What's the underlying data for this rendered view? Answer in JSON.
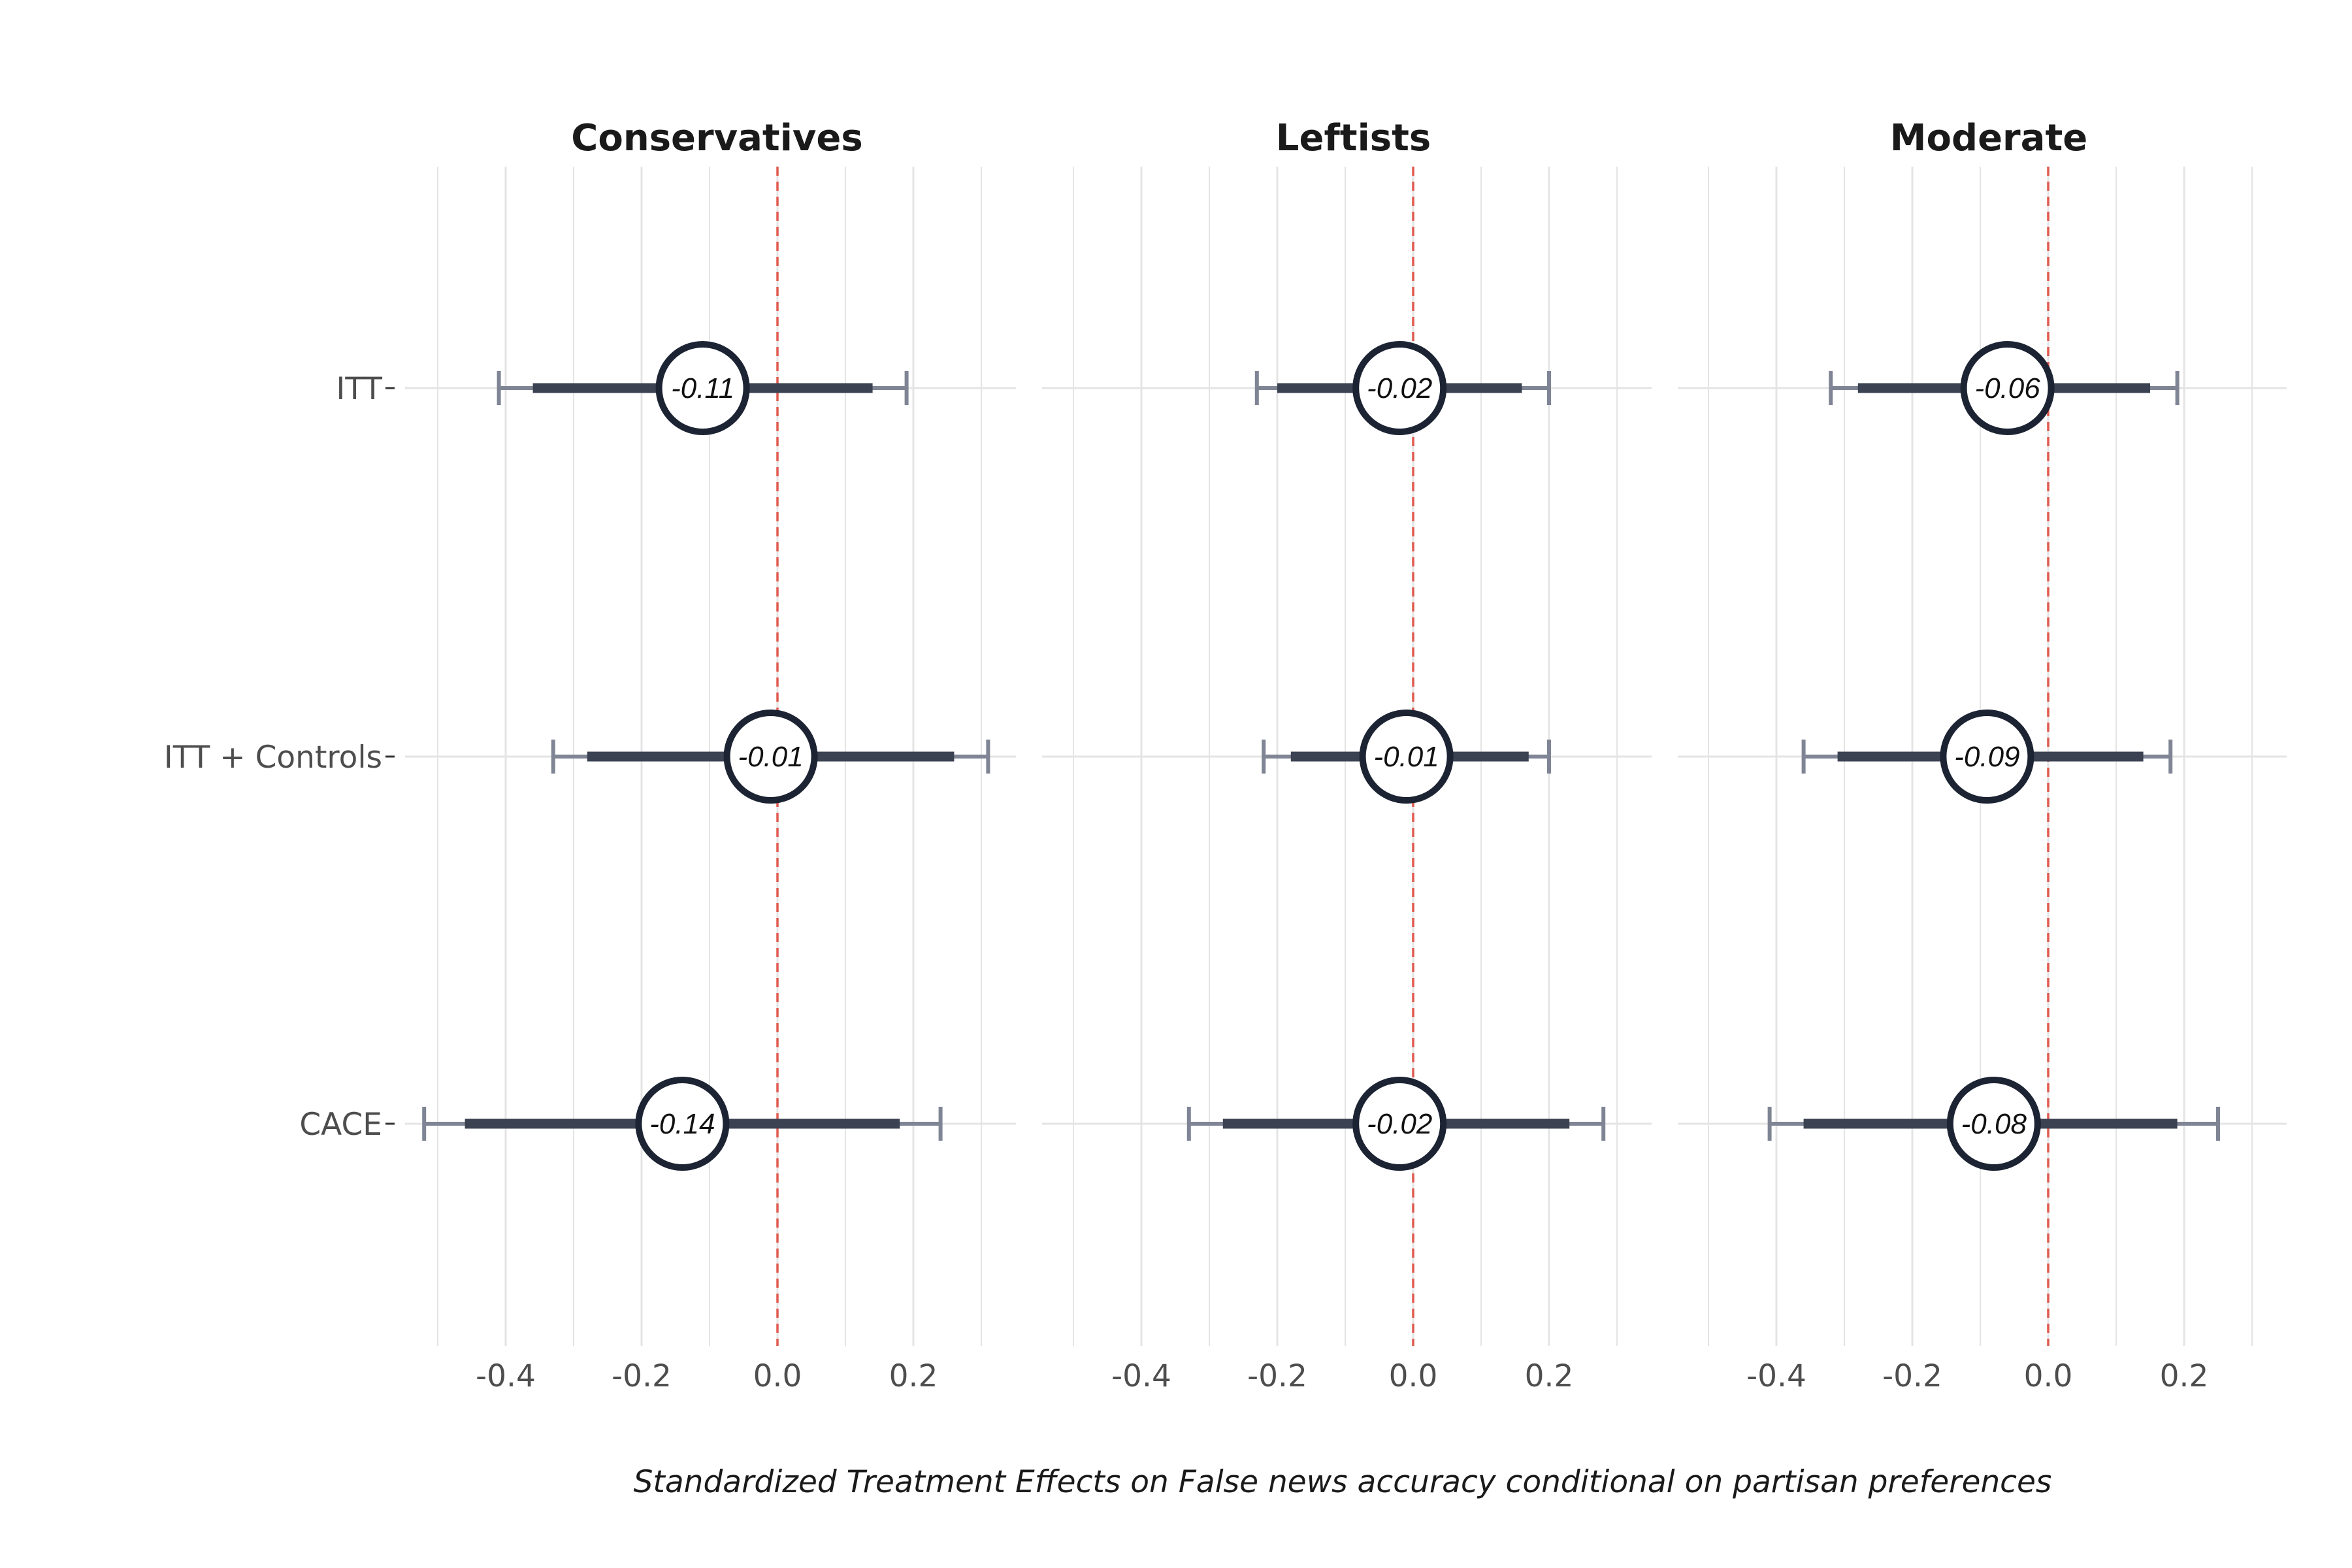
{
  "chart_data": {
    "type": "forest",
    "caption": "Standardized Treatment Effects on False news accuracy conditional on partisan preferences",
    "categories": [
      "ITT",
      "ITT + Controls",
      "CACE"
    ],
    "x_ticks": [
      "-0.4",
      "-0.2",
      "0.0",
      "0.2"
    ],
    "xlim": [
      -0.5,
      0.3
    ],
    "reference_line": 0,
    "grid": true,
    "colors": {
      "point_ring": "#1c2333",
      "ci_inner": "#3b4252",
      "ci_outer": "#7f8594",
      "reference_line": "#e05a4f",
      "grid": "#e4e4e4"
    },
    "panels": [
      {
        "title": "Conservatives",
        "rows": [
          {
            "category": "ITT",
            "estimate": -0.11,
            "label": "-0.11",
            "ci_inner": [
              -0.36,
              0.14
            ],
            "ci_outer": [
              -0.41,
              0.19
            ]
          },
          {
            "category": "ITT + Controls",
            "estimate": -0.01,
            "label": "-0.01",
            "ci_inner": [
              -0.28,
              0.26
            ],
            "ci_outer": [
              -0.33,
              0.31
            ]
          },
          {
            "category": "CACE",
            "estimate": -0.14,
            "label": "-0.14",
            "ci_inner": [
              -0.46,
              0.18
            ],
            "ci_outer": [
              -0.52,
              0.24
            ]
          }
        ]
      },
      {
        "title": "Leftists",
        "rows": [
          {
            "category": "ITT",
            "estimate": -0.02,
            "label": "-0.02",
            "ci_inner": [
              -0.2,
              0.16
            ],
            "ci_outer": [
              -0.23,
              0.2
            ]
          },
          {
            "category": "ITT + Controls",
            "estimate": -0.01,
            "label": "-0.01",
            "ci_inner": [
              -0.18,
              0.17
            ],
            "ci_outer": [
              -0.22,
              0.2
            ]
          },
          {
            "category": "CACE",
            "estimate": -0.02,
            "label": "-0.02",
            "ci_inner": [
              -0.28,
              0.23
            ],
            "ci_outer": [
              -0.33,
              0.28
            ]
          }
        ]
      },
      {
        "title": "Moderate",
        "rows": [
          {
            "category": "ITT",
            "estimate": -0.06,
            "label": "-0.06",
            "ci_inner": [
              -0.28,
              0.15
            ],
            "ci_outer": [
              -0.32,
              0.19
            ]
          },
          {
            "category": "ITT + Controls",
            "estimate": -0.09,
            "label": "-0.09",
            "ci_inner": [
              -0.31,
              0.14
            ],
            "ci_outer": [
              -0.36,
              0.18
            ]
          },
          {
            "category": "CACE",
            "estimate": -0.08,
            "label": "-0.08",
            "ci_inner": [
              -0.36,
              0.19
            ],
            "ci_outer": [
              -0.41,
              0.25
            ]
          }
        ]
      }
    ]
  }
}
